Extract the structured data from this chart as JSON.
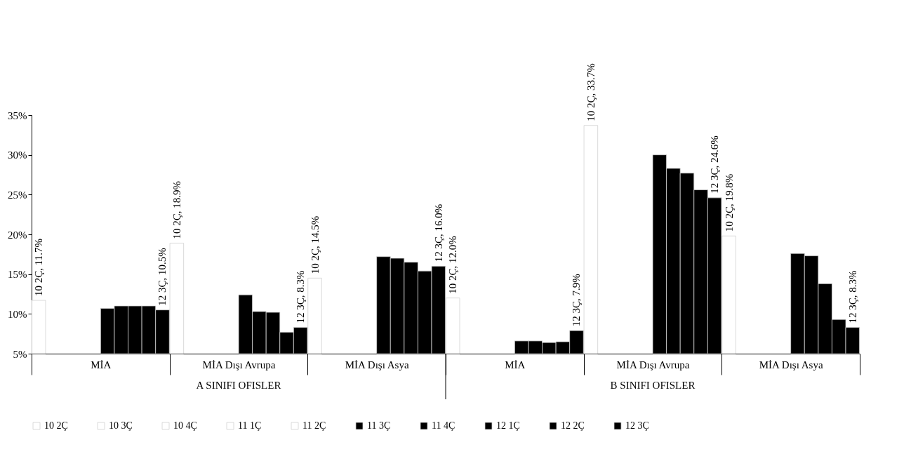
{
  "chart_data": {
    "type": "bar",
    "categories": [
      "MİA",
      "MİA Dışı Avrupa",
      "MİA Dışı Asya",
      "MİA",
      "MİA Dışı Avrupa",
      "MİA Dışı Asya"
    ],
    "annotations": [
      "A SINIFI OFISLER",
      "B SINIFI OFISLER"
    ],
    "series": [
      {
        "name": "10 2Ç",
        "color": "#ffffff",
        "values": [
          11.7,
          18.9,
          14.5,
          12.0,
          33.7,
          19.8
        ],
        "value_labels": [
          "10 2Ç, 11.7%",
          "10 2Ç, 18.9%",
          "10 2Ç, 14.5%",
          "10 2Ç, 12.0%",
          "10 2Ç, 33.7%",
          "10 2Ç, 19.8%"
        ]
      },
      {
        "name": "10 3Ç",
        "color": "#ffffff",
        "values": [
          null,
          null,
          null,
          null,
          null,
          null
        ]
      },
      {
        "name": "10 4Ç",
        "color": "#ffffff",
        "values": [
          null,
          null,
          null,
          null,
          null,
          null
        ]
      },
      {
        "name": "11 1Ç",
        "color": "#ffffff",
        "values": [
          null,
          null,
          null,
          null,
          null,
          null
        ]
      },
      {
        "name": "11 2Ç",
        "color": "#ffffff",
        "values": [
          null,
          null,
          null,
          null,
          null,
          null
        ]
      },
      {
        "name": "11 3Ç",
        "color": "#000000",
        "values": [
          10.7,
          12.4,
          17.2,
          6.6,
          30.0,
          17.6
        ]
      },
      {
        "name": "11 4Ç",
        "color": "#000000",
        "values": [
          11.0,
          10.3,
          17.0,
          6.6,
          28.3,
          17.3
        ]
      },
      {
        "name": "12 1Ç",
        "color": "#000000",
        "values": [
          11.0,
          10.2,
          16.5,
          6.4,
          27.7,
          13.8
        ]
      },
      {
        "name": "12 2Ç",
        "color": "#000000",
        "values": [
          11.0,
          7.7,
          15.4,
          6.5,
          25.6,
          9.3
        ]
      },
      {
        "name": "12 3Ç",
        "color": "#000000",
        "values": [
          10.5,
          8.3,
          16.0,
          7.9,
          24.6,
          8.3
        ],
        "value_labels": [
          "12 3Ç, 10.5%",
          "12 3Ç, 8.3%",
          "12 3Ç, 16.0%",
          "12 3Ç, 7.9%",
          "12 3Ç, 24.6%",
          "12 3Ç, 8.3%"
        ]
      }
    ],
    "ylim": [
      5,
      35
    ],
    "yticks": [
      {
        "value": 5,
        "label": "5%"
      },
      {
        "value": 10,
        "label": "10%"
      },
      {
        "value": 15,
        "label": "15%"
      },
      {
        "value": 20,
        "label": "20%"
      },
      {
        "value": 25,
        "label": "25%"
      },
      {
        "value": 30,
        "label": "30%"
      },
      {
        "value": 35,
        "label": "35%"
      }
    ],
    "legend": "bottom",
    "grid": false
  }
}
